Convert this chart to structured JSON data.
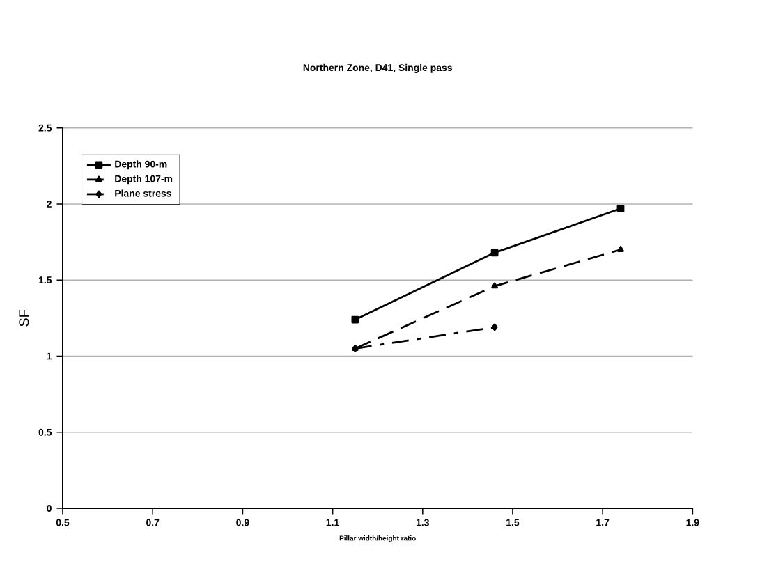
{
  "chart_data": {
    "type": "line",
    "title": "Northern Zone, D41, Single pass",
    "xlabel": "Pillar width/height ratio",
    "ylabel": "SF",
    "x": [
      1.15,
      1.46,
      1.74
    ],
    "series": [
      {
        "name": "Depth 90-m",
        "color": "#000000",
        "values": [
          1.24,
          1.68,
          1.97
        ],
        "marker": "square",
        "line_style": "solid"
      },
      {
        "name": "Depth 107-m",
        "color": "#000000",
        "values": [
          1.05,
          1.46,
          1.7
        ],
        "marker": "triangle",
        "line_style": "dashed"
      },
      {
        "name": "Plane stress",
        "color": "#000000",
        "values": [
          1.05,
          1.19,
          null
        ],
        "marker": "diamond",
        "line_style": "dashdot"
      }
    ],
    "xlim": [
      0.5,
      1.9
    ],
    "xticks": [
      0.5,
      0.7,
      0.9,
      1.1,
      1.3,
      1.5,
      1.7,
      1.9
    ],
    "ylim": [
      0,
      2.5
    ],
    "yticks": [
      0,
      0.5,
      1,
      1.5,
      2,
      2.5
    ],
    "grid": "y",
    "legend": "top left"
  }
}
